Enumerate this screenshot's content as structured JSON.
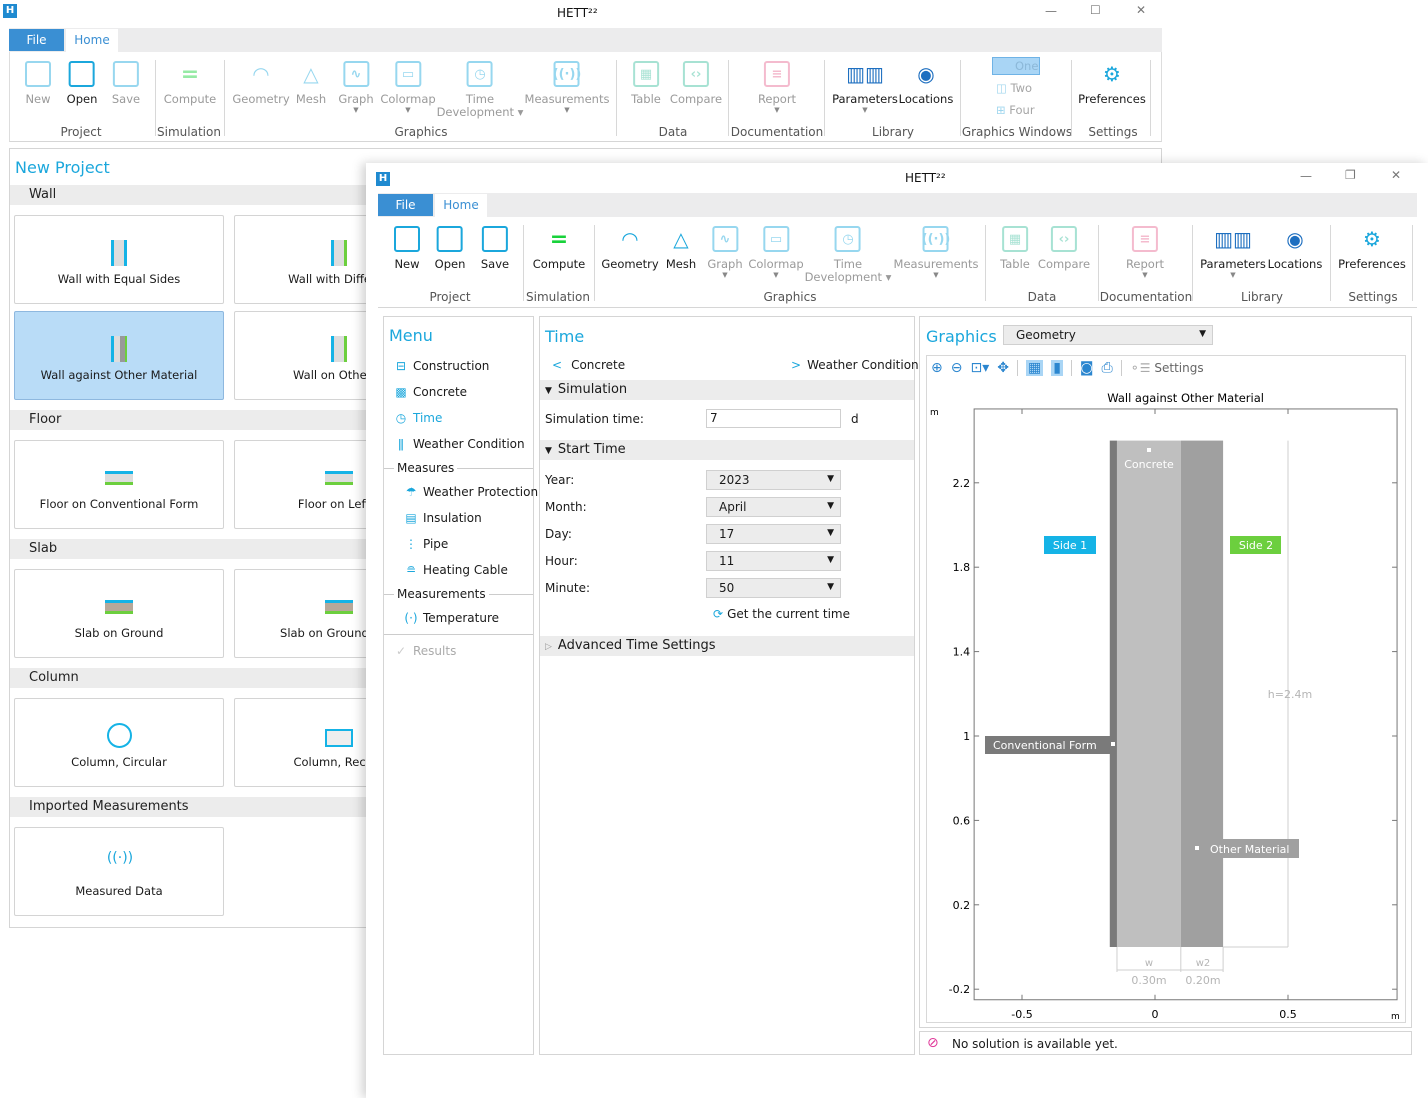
{
  "back_window": {
    "title": "HETT²²",
    "tabs": {
      "file": "File",
      "home": "Home"
    },
    "window_controls": {
      "minimize": "—",
      "maximize": "☐",
      "close": "✕"
    },
    "ribbon": {
      "items": [
        {
          "label": "New",
          "icon": "new-file-icon",
          "enabled": false
        },
        {
          "label": "Open",
          "icon": "open-folder-icon",
          "enabled": true
        },
        {
          "label": "Save",
          "icon": "save-icon",
          "enabled": false
        },
        {
          "label": "Compute",
          "icon": "compute-icon",
          "enabled": false
        },
        {
          "label": "Geometry",
          "icon": "geometry-icon",
          "enabled": false
        },
        {
          "label": "Mesh",
          "icon": "mesh-icon",
          "enabled": false
        },
        {
          "label": "Graph",
          "icon": "graph-icon",
          "enabled": false,
          "dropdown": true
        },
        {
          "label": "Colormap",
          "icon": "colormap-icon",
          "enabled": false,
          "dropdown": true
        },
        {
          "label": "Time Development",
          "icon": "clock-icon",
          "enabled": false,
          "dropdown": true
        },
        {
          "label": "Measurements",
          "icon": "measurements-icon",
          "enabled": false,
          "dropdown": true
        },
        {
          "label": "Table",
          "icon": "table-icon",
          "enabled": false
        },
        {
          "label": "Compare",
          "icon": "compare-icon",
          "enabled": false
        },
        {
          "label": "Report",
          "icon": "report-icon",
          "enabled": false,
          "dropdown": true
        },
        {
          "label": "Parameters",
          "icon": "parameters-icon",
          "enabled": true,
          "dropdown": true
        },
        {
          "label": "Locations",
          "icon": "location-pin-icon",
          "enabled": true
        },
        {
          "label": "Preferences",
          "icon": "gear-icon",
          "enabled": true
        }
      ],
      "graphics_windows": [
        "One",
        "Two",
        "Four"
      ],
      "groups": [
        "Project",
        "Simulation",
        "Graphics",
        "Data",
        "Documentation",
        "Library",
        "Graphics Windows",
        "Settings"
      ]
    },
    "new_project": {
      "title": "New Project",
      "sections": [
        {
          "label": "Wall",
          "cards": [
            "Wall with Equal Sides",
            "Wall with Differen",
            "Wall against Other Material",
            "Wall on Other M"
          ]
        },
        {
          "label": "Floor",
          "cards": [
            "Floor on Conventional Form",
            "Floor on Left F"
          ]
        },
        {
          "label": "Slab",
          "cards": [
            "Slab on Ground",
            "Slab on Ground, Edg"
          ]
        },
        {
          "label": "Column",
          "cards": [
            "Column, Circular",
            "Column, Rectan"
          ]
        },
        {
          "label": "Imported Measurements",
          "cards": [
            "Measured Data"
          ]
        }
      ],
      "selected_card": "Wall against Other Material"
    }
  },
  "front_window": {
    "title": "HETT²²",
    "tabs": {
      "file": "File",
      "home": "Home"
    },
    "window_controls": {
      "minimize": "—",
      "restore": "❐",
      "close": "✕"
    },
    "ribbon": {
      "items": [
        {
          "label": "New",
          "icon": "new-file-icon",
          "enabled": true
        },
        {
          "label": "Open",
          "icon": "open-folder-icon",
          "enabled": true
        },
        {
          "label": "Save",
          "icon": "save-icon",
          "enabled": true
        },
        {
          "label": "Compute",
          "icon": "compute-icon",
          "enabled": true
        },
        {
          "label": "Geometry",
          "icon": "geometry-icon",
          "enabled": true
        },
        {
          "label": "Mesh",
          "icon": "mesh-icon",
          "enabled": true
        },
        {
          "label": "Graph",
          "icon": "graph-icon",
          "enabled": false,
          "dropdown": true
        },
        {
          "label": "Colormap",
          "icon": "colormap-icon",
          "enabled": false,
          "dropdown": true
        },
        {
          "label": "Time Development",
          "icon": "clock-icon",
          "enabled": false,
          "dropdown": true
        },
        {
          "label": "Measurements",
          "icon": "measurements-icon",
          "enabled": false,
          "dropdown": true
        },
        {
          "label": "Table",
          "icon": "table-icon",
          "enabled": false
        },
        {
          "label": "Compare",
          "icon": "compare-icon",
          "enabled": false
        },
        {
          "label": "Report",
          "icon": "report-icon",
          "enabled": false,
          "dropdown": true
        },
        {
          "label": "Parameters",
          "icon": "parameters-icon",
          "enabled": true,
          "dropdown": true
        },
        {
          "label": "Locations",
          "icon": "location-pin-icon",
          "enabled": true
        },
        {
          "label": "Preferences",
          "icon": "gear-icon",
          "enabled": true
        }
      ],
      "groups": [
        "Project",
        "Simulation",
        "Graphics",
        "Data",
        "Documentation",
        "Library",
        "Settings"
      ]
    },
    "menu": {
      "title": "Menu",
      "items": [
        {
          "label": "Construction",
          "icon": "ruler-icon"
        },
        {
          "label": "Concrete",
          "icon": "concrete-icon"
        },
        {
          "label": "Time",
          "icon": "clock-icon",
          "active": true
        },
        {
          "label": "Weather Condition",
          "icon": "thermometer-icon"
        }
      ],
      "measures_header": "Measures",
      "measures": [
        {
          "label": "Weather Protection",
          "icon": "umbrella-icon"
        },
        {
          "label": "Insulation",
          "icon": "insulation-icon"
        },
        {
          "label": "Pipe",
          "icon": "pipe-icon"
        },
        {
          "label": "Heating Cable",
          "icon": "heating-cable-icon"
        }
      ],
      "measurements_header": "Measurements",
      "measurements": [
        {
          "label": "Temperature",
          "icon": "sensor-icon"
        }
      ],
      "results": "Results"
    },
    "time": {
      "title": "Time",
      "prev": "Concrete",
      "next": "Weather Condition",
      "simulation_header": "Simulation",
      "simulation_time_label": "Simulation time:",
      "simulation_time_value": "7",
      "simulation_time_unit": "d",
      "start_time_header": "Start Time",
      "fields": [
        {
          "label": "Year:",
          "value": "2023"
        },
        {
          "label": "Month:",
          "value": "April"
        },
        {
          "label": "Day:",
          "value": "17"
        },
        {
          "label": "Hour:",
          "value": "11"
        },
        {
          "label": "Minute:",
          "value": "50"
        }
      ],
      "get_current_time": "Get the current time",
      "advanced_header": "Advanced Time Settings"
    },
    "graphics": {
      "title": "Graphics",
      "view_select": "Geometry",
      "toolbar": {
        "settings": "Settings"
      },
      "status": "No solution is available yet.",
      "colors": {
        "accent": "#1ba7dc",
        "side1": "#15b3e6",
        "side2": "#6ccf3e",
        "form": "#7a7a7a",
        "concrete": "#bfbfbf",
        "other": "#a0a0a0"
      }
    }
  },
  "chart_data": {
    "type": "geometry",
    "title": "Wall against Other Material",
    "xunit": "m",
    "yunit": "m",
    "xticks": [
      -0.5,
      0,
      0.5
    ],
    "xtick_labels": [
      "-0.5",
      "0",
      "0.5"
    ],
    "yticks": [
      2.2,
      1.8,
      1.4,
      1,
      0.6,
      0.2,
      -0.2
    ],
    "ytick_labels": [
      "2.2",
      "1.8",
      "1.4",
      "1",
      "0.6",
      "0.2",
      "-0.2"
    ],
    "xlim": [
      -0.68,
      0.91
    ],
    "ylim": [
      -0.25,
      2.55
    ],
    "regions": [
      {
        "name": "Conventional Form",
        "x0": -0.17,
        "x1": -0.143,
        "y0": 0,
        "y1": 2.4
      },
      {
        "name": "Concrete",
        "x0": -0.143,
        "x1": 0.097,
        "y0": 0,
        "y1": 2.4
      },
      {
        "name": "Other Material",
        "x0": 0.097,
        "x1": 0.256,
        "y0": 0,
        "y1": 2.4
      }
    ],
    "labels": {
      "side1": "Side 1",
      "side2": "Side 2",
      "concrete": "Concrete",
      "form": "Conventional Form",
      "other": "Other Material",
      "height": "h=2.4m",
      "w": "w",
      "w_value": "0.30m",
      "w2": "w2",
      "w2_value": "0.20m"
    }
  }
}
